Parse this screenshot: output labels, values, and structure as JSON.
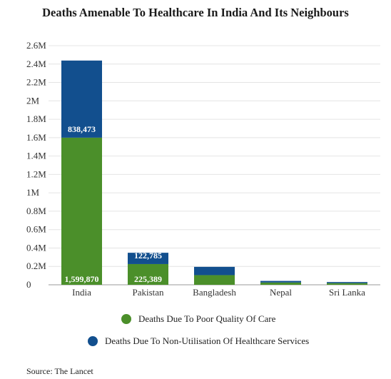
{
  "chart_data": {
    "type": "bar",
    "stacked": true,
    "title": "Deaths Amenable To Healthcare In India And Its Neighbours",
    "xlabel": "",
    "ylabel": "",
    "categories": [
      "India",
      "Pakistan",
      "Bangladesh",
      "Nepal",
      "Sri Lanka"
    ],
    "series": [
      {
        "name": "Deaths Due To Poor Quality Of Care",
        "color": "#4b8f2a",
        "values": [
          1599870,
          225389,
          105000,
          25000,
          18000
        ],
        "labels": [
          "1,599,870",
          "225,389",
          "",
          "",
          ""
        ]
      },
      {
        "name": "Deaths Due To Non-Utilisation Of Healthcare Services",
        "color": "#124f8e",
        "values": [
          838473,
          122785,
          90000,
          17000,
          12000
        ],
        "labels": [
          "838,473",
          "122,785",
          "",
          "",
          ""
        ]
      }
    ],
    "ylim": [
      0,
      2600000
    ],
    "yticks": [
      0,
      200000,
      400000,
      600000,
      800000,
      1000000,
      1200000,
      1400000,
      1600000,
      1800000,
      2000000,
      2200000,
      2400000,
      2600000
    ],
    "ytick_labels": [
      "0",
      "0.2M",
      "0.4M",
      "0.6M",
      "0.8M",
      "1M",
      "1.2M",
      "1.4M",
      "1.6M",
      "1.8M",
      "2M",
      "2.2M",
      "2.4M",
      "2.6M"
    ],
    "grid": true,
    "legend_position": "bottom"
  },
  "source": "Source: The Lancet"
}
